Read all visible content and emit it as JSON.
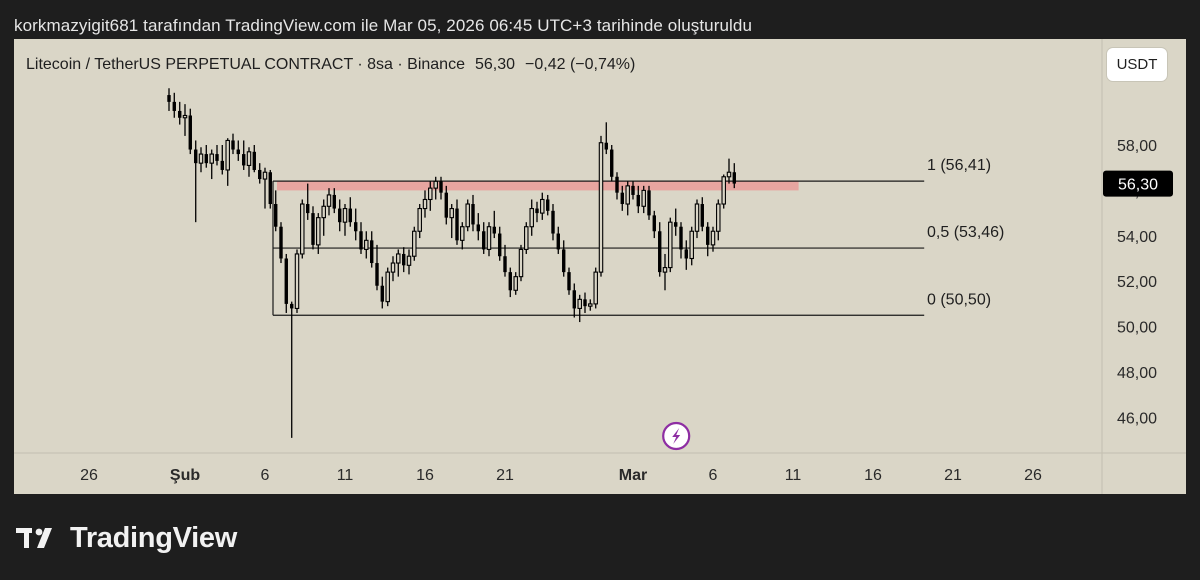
{
  "header": {
    "attribution": "korkmazyigit681 tarafından TradingView.com ile Mar 05, 2026 06:45 UTC+3 tarihinde oluşturuldu"
  },
  "symbol": {
    "name": "Litecoin / TetherUS PERPETUAL CONTRACT · 8sa · Binance",
    "price": "56,30",
    "change": "−0,42 (−0,74%)",
    "currency_button": "USDT",
    "current_price_label": "56,30"
  },
  "brand": {
    "logo_text": "TradingView"
  },
  "colors": {
    "background": "#dad6c7",
    "candle": "#000000",
    "resistance_zone": "#e8a09b",
    "current_price_badge": "#000000"
  },
  "chart_data": {
    "type": "candlestick",
    "y_axis": {
      "ticks": [
        46,
        48,
        50,
        52,
        54,
        56,
        58
      ],
      "tick_labels": [
        "46,00",
        "48,00",
        "50,00",
        "52,00",
        "54,00",
        "56,00",
        "58,00"
      ],
      "range": [
        45,
        59.8
      ]
    },
    "x_axis": {
      "tick_labels": [
        {
          "label": "26",
          "day": -6
        },
        {
          "label": "Şub",
          "day": 0
        },
        {
          "label": "6",
          "day": 5
        },
        {
          "label": "11",
          "day": 10
        },
        {
          "label": "16",
          "day": 15
        },
        {
          "label": "21",
          "day": 20
        },
        {
          "label": "Mar",
          "day": 28
        },
        {
          "label": "6",
          "day": 33
        },
        {
          "label": "11",
          "day": 38
        },
        {
          "label": "16",
          "day": 43
        },
        {
          "label": "21",
          "day": 48
        },
        {
          "label": "26",
          "day": 53
        }
      ]
    },
    "fib_levels": [
      {
        "label": "1 (56,41)",
        "value": 56.41
      },
      {
        "label": "0,5 (53,46)",
        "value": 53.46
      },
      {
        "label": "0 (50,50)",
        "value": 50.5
      }
    ],
    "resistance_zone": {
      "from_day": 5.75,
      "to_day": 38.35,
      "low": 56.0,
      "high": 56.4
    },
    "current_price": 56.3,
    "candles": [
      [
        -1.0,
        60.2,
        60.5,
        59.5,
        59.9
      ],
      [
        -0.67,
        59.9,
        60.3,
        59.2,
        59.5
      ],
      [
        -0.33,
        59.5,
        59.9,
        58.9,
        59.2
      ],
      [
        0.0,
        59.2,
        59.8,
        58.4,
        59.3
      ],
      [
        0.33,
        59.3,
        59.6,
        57.6,
        57.8
      ],
      [
        0.67,
        57.8,
        58.2,
        54.6,
        57.2
      ],
      [
        1.0,
        57.2,
        57.9,
        56.8,
        57.6
      ],
      [
        1.33,
        57.6,
        58.0,
        57.0,
        57.2
      ],
      [
        1.67,
        57.2,
        57.8,
        56.5,
        57.6
      ],
      [
        2.0,
        57.6,
        58.0,
        57.1,
        57.3
      ],
      [
        2.33,
        57.3,
        58.0,
        56.7,
        56.9
      ],
      [
        2.67,
        56.9,
        58.3,
        56.2,
        58.2
      ],
      [
        3.0,
        58.2,
        58.5,
        57.6,
        57.8
      ],
      [
        3.33,
        57.8,
        58.2,
        57.3,
        57.6
      ],
      [
        3.67,
        57.6,
        58.2,
        56.9,
        57.1
      ],
      [
        4.0,
        57.1,
        57.9,
        56.6,
        57.7
      ],
      [
        4.33,
        57.7,
        58.0,
        56.8,
        56.9
      ],
      [
        4.67,
        56.9,
        57.2,
        56.3,
        56.5
      ],
      [
        5.0,
        56.5,
        57.0,
        55.2,
        56.8
      ],
      [
        5.33,
        56.8,
        56.9,
        55.2,
        55.4
      ],
      [
        5.67,
        55.4,
        56.0,
        54.2,
        54.4
      ],
      [
        6.0,
        54.4,
        54.6,
        52.8,
        53.0
      ],
      [
        6.33,
        53.0,
        53.2,
        50.6,
        51.0
      ],
      [
        6.67,
        51.0,
        51.1,
        45.1,
        50.8
      ],
      [
        7.0,
        50.8,
        53.4,
        50.6,
        53.2
      ],
      [
        7.33,
        53.2,
        55.6,
        53.0,
        55.4
      ],
      [
        7.67,
        55.4,
        56.3,
        54.7,
        55.0
      ],
      [
        8.0,
        55.0,
        55.3,
        53.4,
        53.6
      ],
      [
        8.33,
        53.6,
        55.0,
        53.2,
        54.8
      ],
      [
        8.67,
        54.8,
        55.6,
        54.0,
        55.3
      ],
      [
        9.0,
        55.3,
        56.1,
        54.9,
        55.8
      ],
      [
        9.33,
        55.8,
        56.1,
        55.0,
        55.2
      ],
      [
        9.67,
        55.2,
        55.6,
        54.2,
        54.6
      ],
      [
        10.0,
        54.6,
        55.4,
        54.0,
        55.2
      ],
      [
        10.33,
        55.2,
        55.7,
        54.4,
        54.6
      ],
      [
        10.67,
        54.6,
        55.2,
        53.8,
        54.2
      ],
      [
        11.0,
        54.2,
        54.6,
        53.2,
        53.4
      ],
      [
        11.33,
        53.4,
        54.2,
        53.0,
        53.8
      ],
      [
        11.67,
        53.8,
        54.2,
        52.6,
        52.8
      ],
      [
        12.0,
        52.8,
        53.6,
        51.6,
        51.8
      ],
      [
        12.33,
        51.8,
        52.2,
        50.8,
        51.1
      ],
      [
        12.67,
        51.1,
        52.6,
        50.9,
        52.4
      ],
      [
        13.0,
        52.4,
        53.1,
        52.0,
        52.8
      ],
      [
        13.33,
        52.8,
        53.4,
        52.2,
        53.2
      ],
      [
        13.67,
        53.2,
        53.5,
        52.4,
        52.7
      ],
      [
        14.0,
        52.7,
        53.4,
        52.3,
        53.1
      ],
      [
        14.33,
        53.1,
        54.4,
        52.9,
        54.2
      ],
      [
        14.67,
        54.2,
        55.4,
        53.9,
        55.2
      ],
      [
        15.0,
        55.2,
        56.0,
        54.8,
        55.6
      ],
      [
        15.33,
        55.6,
        56.4,
        55.1,
        56.1
      ],
      [
        15.67,
        56.1,
        56.6,
        55.6,
        56.4
      ],
      [
        16.0,
        56.4,
        56.6,
        55.6,
        55.9
      ],
      [
        16.33,
        55.9,
        56.2,
        54.5,
        54.8
      ],
      [
        16.67,
        54.8,
        55.4,
        53.9,
        55.2
      ],
      [
        17.0,
        55.2,
        55.6,
        53.6,
        53.8
      ],
      [
        17.33,
        53.8,
        54.6,
        53.4,
        54.4
      ],
      [
        17.67,
        54.4,
        55.6,
        54.2,
        55.4
      ],
      [
        18.0,
        55.4,
        55.8,
        54.2,
        54.5
      ],
      [
        18.33,
        54.5,
        55.0,
        53.8,
        54.2
      ],
      [
        18.67,
        54.2,
        54.6,
        53.2,
        53.4
      ],
      [
        19.0,
        53.4,
        54.6,
        53.1,
        54.4
      ],
      [
        19.33,
        54.4,
        55.1,
        53.9,
        54.1
      ],
      [
        19.67,
        54.1,
        54.4,
        52.9,
        53.1
      ],
      [
        20.0,
        53.1,
        53.6,
        52.2,
        52.4
      ],
      [
        20.33,
        52.4,
        52.6,
        51.3,
        51.6
      ],
      [
        20.67,
        51.6,
        52.4,
        51.4,
        52.2
      ],
      [
        21.0,
        52.2,
        53.6,
        52.0,
        53.4
      ],
      [
        21.33,
        53.4,
        54.6,
        53.2,
        54.4
      ],
      [
        21.67,
        54.4,
        55.6,
        54.0,
        55.2
      ],
      [
        22.0,
        55.2,
        55.5,
        54.6,
        55.0
      ],
      [
        22.33,
        55.0,
        55.9,
        54.7,
        55.6
      ],
      [
        22.67,
        55.6,
        55.8,
        54.9,
        55.1
      ],
      [
        23.0,
        55.1,
        55.4,
        53.8,
        54.1
      ],
      [
        23.33,
        54.1,
        54.4,
        53.2,
        53.4
      ],
      [
        23.67,
        53.4,
        53.8,
        52.2,
        52.4
      ],
      [
        24.0,
        52.4,
        52.6,
        51.4,
        51.6
      ],
      [
        24.33,
        51.6,
        51.9,
        50.4,
        50.8
      ],
      [
        24.67,
        50.8,
        51.4,
        50.2,
        51.2
      ],
      [
        25.0,
        51.2,
        51.5,
        50.6,
        50.9
      ],
      [
        25.33,
        50.9,
        51.2,
        50.7,
        51.0
      ],
      [
        25.67,
        51.0,
        52.6,
        50.8,
        52.4
      ],
      [
        26.0,
        52.4,
        58.4,
        52.2,
        58.1
      ],
      [
        26.33,
        58.1,
        59.0,
        57.6,
        57.8
      ],
      [
        26.67,
        57.8,
        58.0,
        56.4,
        56.6
      ],
      [
        27.0,
        56.6,
        56.8,
        55.6,
        55.9
      ],
      [
        27.33,
        55.9,
        56.2,
        55.1,
        55.4
      ],
      [
        27.67,
        55.4,
        56.4,
        54.9,
        56.2
      ],
      [
        28.0,
        56.2,
        56.4,
        55.6,
        55.8
      ],
      [
        28.33,
        55.8,
        56.2,
        55.0,
        55.3
      ],
      [
        28.67,
        55.3,
        56.2,
        55.0,
        56.0
      ],
      [
        29.0,
        56.0,
        56.2,
        54.7,
        54.9
      ],
      [
        29.33,
        54.9,
        55.1,
        53.9,
        54.2
      ],
      [
        29.67,
        54.2,
        54.6,
        52.2,
        52.4
      ],
      [
        30.0,
        52.4,
        53.2,
        51.6,
        52.6
      ],
      [
        30.33,
        52.6,
        54.8,
        52.4,
        54.6
      ],
      [
        30.67,
        54.6,
        55.2,
        54.0,
        54.4
      ],
      [
        31.0,
        54.4,
        54.6,
        53.0,
        53.4
      ],
      [
        31.33,
        53.4,
        53.8,
        52.5,
        53.0
      ],
      [
        31.67,
        53.0,
        54.4,
        52.7,
        54.2
      ],
      [
        32.0,
        54.2,
        55.6,
        53.9,
        55.4
      ],
      [
        32.33,
        55.4,
        55.7,
        54.2,
        54.4
      ],
      [
        32.67,
        54.4,
        54.6,
        53.1,
        53.6
      ],
      [
        33.0,
        53.6,
        54.4,
        53.3,
        54.2
      ],
      [
        33.33,
        54.2,
        55.6,
        53.8,
        55.4
      ],
      [
        33.67,
        55.4,
        56.7,
        55.2,
        56.6
      ],
      [
        34.0,
        56.6,
        57.4,
        56.3,
        56.8
      ],
      [
        34.33,
        56.8,
        57.2,
        56.1,
        56.3
      ]
    ]
  }
}
